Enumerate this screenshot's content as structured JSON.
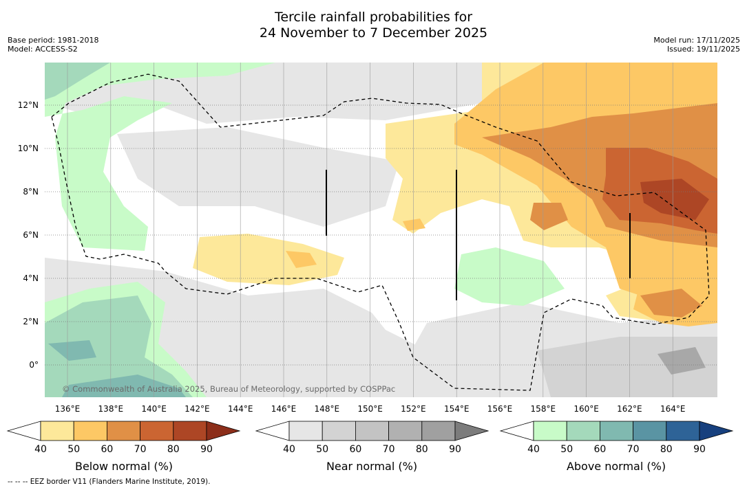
{
  "title": {
    "line1": "Tercile rainfall probabilities for",
    "line2": "24 November to 7 December 2025"
  },
  "meta_left": {
    "base_period": "Base period: 1981-2018",
    "model": "Model: ACCESS-S2"
  },
  "meta_right": {
    "model_run": "Model run: 17/11/2025",
    "issued": "Issued: 19/11/2025"
  },
  "map": {
    "lon_labels": [
      "136°E",
      "138°E",
      "140°E",
      "142°E",
      "144°E",
      "146°E",
      "148°E",
      "150°E",
      "152°E",
      "154°E",
      "156°E",
      "158°E",
      "160°E",
      "162°E",
      "164°E"
    ],
    "lat_labels": [
      "12°N",
      "10°N",
      "8°N",
      "6°N",
      "4°N",
      "2°N",
      "0°"
    ],
    "copyright": "© Commonwealth of Australia 2025, Bureau of Meteorology, supported by COSPPac"
  },
  "colorbars": {
    "below": {
      "label": "Below normal (%)",
      "ticks": [
        "40",
        "50",
        "60",
        "70",
        "80",
        "90"
      ],
      "colors": [
        "#ffffff",
        "#fde89a",
        "#fdc865",
        "#e09046",
        "#cb6532",
        "#ad4625",
        "#8c2e1a"
      ]
    },
    "near": {
      "label": "Near normal (%)",
      "ticks": [
        "40",
        "50",
        "60",
        "70",
        "80",
        "90"
      ],
      "colors": [
        "#ffffff",
        "#e6e6e6",
        "#d3d3d3",
        "#c3c3c3",
        "#b1b1b1",
        "#a0a0a0",
        "#7c7c7c"
      ]
    },
    "above": {
      "label": "Above normal (%)",
      "ticks": [
        "40",
        "50",
        "60",
        "70",
        "80",
        "90"
      ],
      "colors": [
        "#ffffff",
        "#c8fbc8",
        "#a4d9bb",
        "#80b9b0",
        "#5a94a3",
        "#2e6397",
        "#17407e"
      ]
    }
  },
  "footer": {
    "eez": "--  --  -- EEZ border V11 (Flanders Marine Institute, 2019)."
  }
}
